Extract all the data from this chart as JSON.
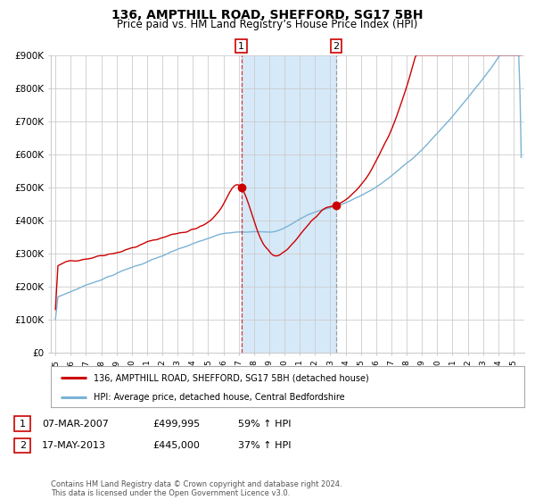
{
  "title": "136, AMPTHILL ROAD, SHEFFORD, SG17 5BH",
  "subtitle": "Price paid vs. HM Land Registry’s House Price Index (HPI)",
  "title_fontsize": 10,
  "subtitle_fontsize": 8.5,
  "background_color": "#ffffff",
  "plot_background_color": "#ffffff",
  "grid_color": "#cccccc",
  "hpi_line_color": "#7ab3d4",
  "price_line_color": "#cc0000",
  "highlight_color": "#d6e9f8",
  "marker1_date": 2007.18,
  "marker1_price": 499995,
  "marker2_date": 2013.38,
  "marker2_price": 445000,
  "legend_entry1": "136, AMPTHILL ROAD, SHEFFORD, SG17 5BH (detached house)",
  "legend_entry2": "HPI: Average price, detached house, Central Bedfordshire",
  "table_row1": [
    "1",
    "07-MAR-2007",
    "£499,995",
    "59% ↑ HPI"
  ],
  "table_row2": [
    "2",
    "17-MAY-2013",
    "£445,000",
    "37% ↑ HPI"
  ],
  "footnote": "Contains HM Land Registry data © Crown copyright and database right 2024.\nThis data is licensed under the Open Government Licence v3.0.",
  "ylim": [
    0,
    900000
  ],
  "xlim_start": 1994.7,
  "xlim_end": 2025.7
}
